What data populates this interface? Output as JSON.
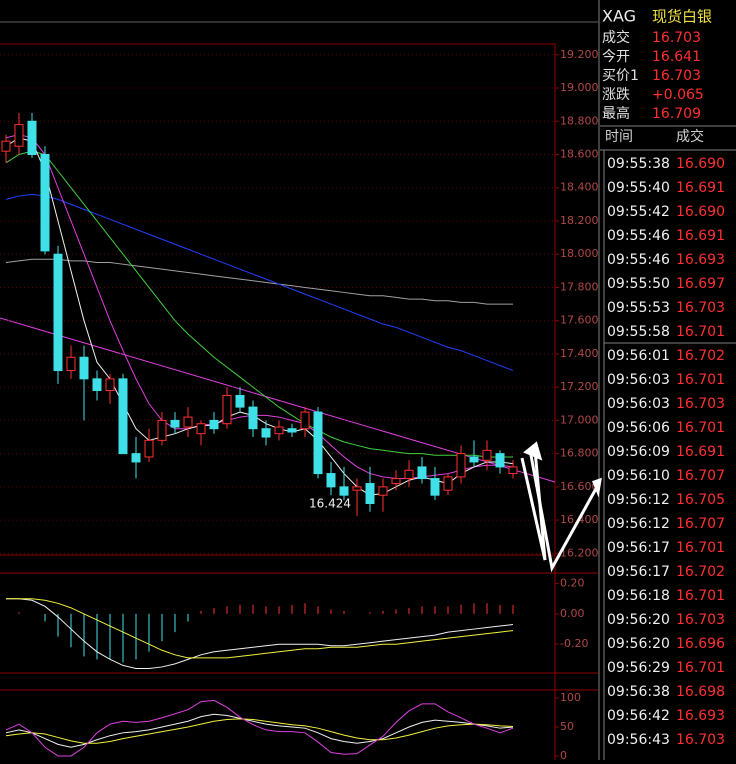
{
  "chart_data": [
    {
      "type": "candlestick",
      "up_color": "#ff3030",
      "down_color": "#40e0e8",
      "grid": true,
      "ylim": [
        16.19,
        19.265
      ],
      "yticks": [
        {
          "value": 16.2,
          "label": "16.200"
        },
        {
          "value": 16.4,
          "label": "16.400"
        },
        {
          "value": 16.6,
          "label": "16.600"
        },
        {
          "value": 16.8,
          "label": "16.800"
        },
        {
          "value": 17,
          "label": "17.000"
        },
        {
          "value": 17.2,
          "label": "17.200"
        },
        {
          "value": 17.4,
          "label": "17.400"
        },
        {
          "value": 17.6,
          "label": "17.600"
        },
        {
          "value": 17.8,
          "label": "17.800"
        },
        {
          "value": 18,
          "label": "18.000"
        },
        {
          "value": 18.2,
          "label": "18.200"
        },
        {
          "value": 18.4,
          "label": "18.400"
        },
        {
          "value": 18.6,
          "label": "18.600"
        },
        {
          "value": 18.8,
          "label": "18.800"
        },
        {
          "value": 19,
          "label": "19.000"
        },
        {
          "value": 19.2,
          "label": "19.200"
        }
      ],
      "open": [
        18.62,
        18.65,
        18.8,
        18.6,
        18.0,
        17.3,
        17.38,
        17.25,
        17.18,
        17.25,
        16.8,
        16.78,
        16.88,
        17.0,
        16.96,
        16.92,
        17.0,
        16.98,
        17.15,
        17.08,
        16.95,
        16.92,
        16.95,
        16.95,
        17.05,
        16.68,
        16.6,
        16.58,
        16.62,
        16.55,
        16.62,
        16.65,
        16.72,
        16.65,
        16.58,
        16.66,
        16.78,
        16.76,
        16.8,
        16.68
      ],
      "high": [
        18.72,
        18.85,
        18.85,
        18.65,
        18.05,
        17.45,
        17.45,
        17.3,
        17.28,
        17.28,
        16.9,
        16.95,
        17.05,
        17.05,
        17.08,
        17.0,
        17.05,
        17.2,
        17.2,
        17.12,
        17.0,
        17.0,
        16.98,
        17.08,
        17.08,
        16.75,
        16.72,
        16.65,
        16.72,
        16.65,
        16.7,
        16.76,
        16.78,
        16.72,
        16.68,
        16.85,
        16.88,
        16.88,
        16.82,
        16.76
      ],
      "low": [
        18.55,
        18.6,
        18.58,
        18.0,
        17.22,
        17.25,
        17.0,
        17.12,
        17.1,
        16.8,
        16.65,
        16.75,
        16.85,
        16.92,
        16.9,
        16.85,
        16.92,
        16.95,
        17.05,
        16.9,
        16.85,
        16.88,
        16.9,
        16.9,
        16.65,
        16.55,
        16.52,
        16.424,
        16.45,
        16.45,
        16.58,
        16.6,
        16.62,
        16.52,
        16.55,
        16.62,
        16.72,
        16.7,
        16.68,
        16.65
      ],
      "close": [
        18.68,
        18.78,
        18.6,
        18.02,
        17.3,
        17.38,
        17.25,
        17.18,
        17.25,
        16.8,
        16.75,
        16.88,
        17.0,
        16.96,
        17.02,
        16.98,
        16.95,
        17.15,
        17.08,
        16.95,
        16.9,
        16.96,
        16.93,
        17.05,
        16.68,
        16.6,
        16.55,
        16.6,
        16.5,
        16.6,
        16.65,
        16.7,
        16.65,
        16.55,
        16.66,
        16.8,
        16.75,
        16.82,
        16.72,
        16.72
      ],
      "low_label": {
        "value": 16.424,
        "label": "16.424"
      },
      "series": [
        {
          "color": "#a0a0a0",
          "values": [
            17.95,
            17.96,
            17.97,
            17.97,
            17.97,
            17.96,
            17.96,
            17.95,
            17.95,
            17.94,
            17.93,
            17.92,
            17.91,
            17.9,
            17.89,
            17.88,
            17.87,
            17.86,
            17.85,
            17.84,
            17.83,
            17.82,
            17.81,
            17.8,
            17.79,
            17.78,
            17.77,
            17.76,
            17.75,
            17.75,
            17.74,
            17.73,
            17.73,
            17.72,
            17.72,
            17.71,
            17.71,
            17.7,
            17.7,
            17.7
          ]
        },
        {
          "color": "#2040ff",
          "values": [
            18.33,
            18.35,
            18.36,
            18.35,
            18.33,
            18.3,
            18.27,
            18.24,
            18.21,
            18.18,
            18.15,
            18.12,
            18.09,
            18.06,
            18.03,
            18.0,
            17.97,
            17.94,
            17.91,
            17.88,
            17.85,
            17.82,
            17.79,
            17.76,
            17.73,
            17.7,
            17.67,
            17.64,
            17.61,
            17.58,
            17.56,
            17.53,
            17.5,
            17.47,
            17.44,
            17.42,
            17.39,
            17.36,
            17.33,
            17.3
          ]
        },
        {
          "color": "#40d040",
          "values": [
            18.55,
            18.6,
            18.62,
            18.6,
            18.5,
            18.4,
            18.3,
            18.2,
            18.1,
            18.0,
            17.9,
            17.8,
            17.7,
            17.6,
            17.52,
            17.45,
            17.38,
            17.32,
            17.26,
            17.2,
            17.14,
            17.08,
            17.03,
            16.98,
            16.94,
            16.9,
            16.87,
            16.85,
            16.83,
            16.82,
            16.81,
            16.8,
            16.8,
            16.79,
            16.79,
            16.79,
            16.79,
            16.78,
            16.78,
            16.78
          ]
        },
        {
          "color": "#e040e0",
          "values": [
            18.7,
            18.72,
            18.7,
            18.6,
            18.4,
            18.2,
            18.0,
            17.8,
            17.6,
            17.42,
            17.25,
            17.1,
            17.0,
            16.95,
            16.95,
            16.97,
            16.98,
            17.0,
            17.02,
            17.03,
            17.03,
            17.02,
            17.0,
            16.98,
            16.92,
            16.85,
            16.78,
            16.72,
            16.68,
            16.66,
            16.65,
            16.65,
            16.66,
            16.67,
            16.68,
            16.7,
            16.72,
            16.73,
            16.73,
            16.72
          ]
        },
        {
          "color": "#f0f0f0",
          "values": [
            18.65,
            18.7,
            18.68,
            18.5,
            18.2,
            17.9,
            17.6,
            17.35,
            17.25,
            17.1,
            16.95,
            16.88,
            16.9,
            16.92,
            16.95,
            16.97,
            16.97,
            17.02,
            17.05,
            17.03,
            16.98,
            16.95,
            16.93,
            16.95,
            16.88,
            16.78,
            16.68,
            16.6,
            16.55,
            16.56,
            16.6,
            16.64,
            16.66,
            16.64,
            16.62,
            16.68,
            16.72,
            16.75,
            16.75,
            16.74
          ]
        }
      ]
    },
    {
      "type": "bar",
      "up_color": "#ff3030",
      "down_color": "#40e0e8",
      "ylim": [
        -0.39,
        0.27
      ],
      "yticks": [
        {
          "value": 0.2,
          "label": "0.20"
        },
        {
          "value": 0,
          "label": "0.00"
        },
        {
          "value": -0.2,
          "label": "-0.20"
        }
      ],
      "values": [
        0.0,
        0.01,
        0.0,
        -0.05,
        -0.15,
        -0.22,
        -0.28,
        -0.3,
        -0.3,
        -0.32,
        -0.3,
        -0.25,
        -0.18,
        -0.12,
        -0.05,
        0.02,
        0.04,
        0.05,
        0.06,
        0.06,
        0.05,
        0.05,
        0.06,
        0.07,
        0.05,
        0.03,
        0.02,
        0.0,
        0.01,
        0.02,
        0.03,
        0.04,
        0.05,
        0.05,
        0.05,
        0.06,
        0.07,
        0.07,
        0.06,
        0.06
      ],
      "series": [
        {
          "color": "#f0f0f0",
          "values": [
            0.1,
            0.1,
            0.09,
            0.05,
            -0.02,
            -0.1,
            -0.18,
            -0.25,
            -0.3,
            -0.34,
            -0.36,
            -0.36,
            -0.35,
            -0.33,
            -0.3,
            -0.27,
            -0.25,
            -0.24,
            -0.23,
            -0.22,
            -0.21,
            -0.2,
            -0.2,
            -0.2,
            -0.2,
            -0.21,
            -0.21,
            -0.2,
            -0.19,
            -0.18,
            -0.17,
            -0.16,
            -0.15,
            -0.14,
            -0.12,
            -0.11,
            -0.1,
            -0.09,
            -0.08,
            -0.07
          ]
        },
        {
          "color": "#f0f040",
          "values": [
            0.1,
            0.1,
            0.1,
            0.09,
            0.07,
            0.04,
            0.0,
            -0.04,
            -0.08,
            -0.12,
            -0.16,
            -0.2,
            -0.24,
            -0.27,
            -0.29,
            -0.29,
            -0.29,
            -0.29,
            -0.28,
            -0.27,
            -0.26,
            -0.25,
            -0.24,
            -0.23,
            -0.23,
            -0.22,
            -0.22,
            -0.22,
            -0.21,
            -0.2,
            -0.2,
            -0.19,
            -0.18,
            -0.17,
            -0.16,
            -0.15,
            -0.14,
            -0.13,
            -0.12,
            -0.11
          ]
        }
      ]
    },
    {
      "type": "line",
      "ylim": [
        -7,
        114
      ],
      "yticks": [
        100,
        50,
        0
      ],
      "series": [
        {
          "color": "#f0f0f0",
          "values": [
            40,
            45,
            40,
            30,
            20,
            15,
            20,
            28,
            35,
            40,
            42,
            45,
            50,
            55,
            60,
            68,
            72,
            70,
            65,
            60,
            55,
            52,
            50,
            48,
            40,
            30,
            25,
            22,
            25,
            30,
            40,
            50,
            58,
            62,
            60,
            58,
            55,
            52,
            48,
            50
          ]
        },
        {
          "color": "#f0f040",
          "values": [
            35,
            38,
            40,
            38,
            32,
            26,
            22,
            22,
            25,
            30,
            34,
            38,
            42,
            46,
            50,
            55,
            60,
            63,
            64,
            63,
            60,
            57,
            54,
            52,
            48,
            42,
            36,
            31,
            28,
            28,
            31,
            36,
            42,
            48,
            52,
            54,
            55,
            54,
            52,
            51
          ]
        },
        {
          "color": "#e040e0",
          "values": [
            45,
            55,
            40,
            15,
            0,
            0,
            15,
            40,
            55,
            60,
            58,
            60,
            66,
            73,
            80,
            94,
            96,
            84,
            67,
            54,
            45,
            42,
            42,
            40,
            24,
            6,
            3,
            4,
            19,
            34,
            58,
            78,
            90,
            90,
            76,
            66,
            55,
            48,
            40,
            48
          ]
        }
      ]
    }
  ],
  "quote": {
    "symbol": "XAG",
    "name": "现货白银",
    "rows": [
      [
        "成交",
        "16.703"
      ],
      [
        "今开",
        "16.641"
      ],
      [
        "买价1",
        "16.703"
      ],
      [
        "涨跌",
        "+0.065"
      ],
      [
        "最高",
        "16.709"
      ]
    ]
  },
  "trades": {
    "header": [
      "时间",
      "成交"
    ],
    "rows": [
      [
        "09:55:38",
        "16.690"
      ],
      [
        "09:55:40",
        "16.691"
      ],
      [
        "09:55:42",
        "16.690"
      ],
      [
        "09:55:46",
        "16.691"
      ],
      [
        "09:55:46",
        "16.693"
      ],
      [
        "09:55:50",
        "16.697"
      ],
      [
        "09:55:53",
        "16.703"
      ],
      [
        "09:55:58",
        "16.701"
      ],
      [
        "09:56:01",
        "16.702"
      ],
      [
        "09:56:03",
        "16.701"
      ],
      [
        "09:56:03",
        "16.703"
      ],
      [
        "09:56:06",
        "16.701"
      ],
      [
        "09:56:09",
        "16.691"
      ],
      [
        "09:56:10",
        "16.707"
      ],
      [
        "09:56:12",
        "16.705"
      ],
      [
        "09:56:12",
        "16.707"
      ],
      [
        "09:56:17",
        "16.701"
      ],
      [
        "09:56:17",
        "16.702"
      ],
      [
        "09:56:18",
        "16.701"
      ],
      [
        "09:56:20",
        "16.703"
      ],
      [
        "09:56:20",
        "16.696"
      ],
      [
        "09:56:29",
        "16.701"
      ],
      [
        "09:56:38",
        "16.698"
      ],
      [
        "09:56:42",
        "16.693"
      ],
      [
        "09:56:43",
        "16.703"
      ]
    ]
  }
}
